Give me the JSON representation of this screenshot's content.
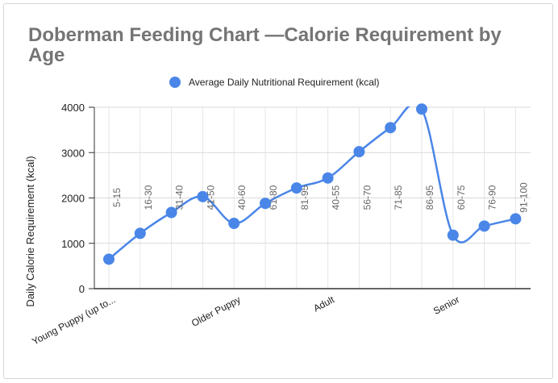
{
  "chart_data": {
    "type": "line",
    "title": "Doberman Feeding Chart —Calorie Requirement by Age",
    "ylabel": "Daily Calorie Requirement (kcal)",
    "xlabel": "",
    "ylim": [
      0,
      4000
    ],
    "yticks": [
      0,
      1000,
      2000,
      3000,
      4000
    ],
    "legend": {
      "position": "top",
      "entries": [
        "Average Daily Nutritional Requirement (kcal)"
      ]
    },
    "color": "#4a86e8",
    "grid": true,
    "smooth": true,
    "categories": [
      "5-15",
      "16-30",
      "31-40",
      "41-50",
      "40-60",
      "61-80",
      "81-95",
      "40-55",
      "56-70",
      "71-85",
      "86-95",
      "60-75",
      "76-90",
      "91-100"
    ],
    "group_labels": [
      {
        "label": "Young Puppy (up to...",
        "at_index": 0
      },
      {
        "label": "Older Puppy",
        "at_index": 4
      },
      {
        "label": "Adult",
        "at_index": 7
      },
      {
        "label": "Senior",
        "at_index": 11
      }
    ],
    "series": [
      {
        "name": "Average Daily Nutritional Requirement (kcal)",
        "values": [
          650,
          1220,
          1680,
          2030,
          1440,
          1880,
          2220,
          2440,
          3020,
          3550,
          3960,
          1180,
          1380,
          1540
        ]
      }
    ]
  }
}
